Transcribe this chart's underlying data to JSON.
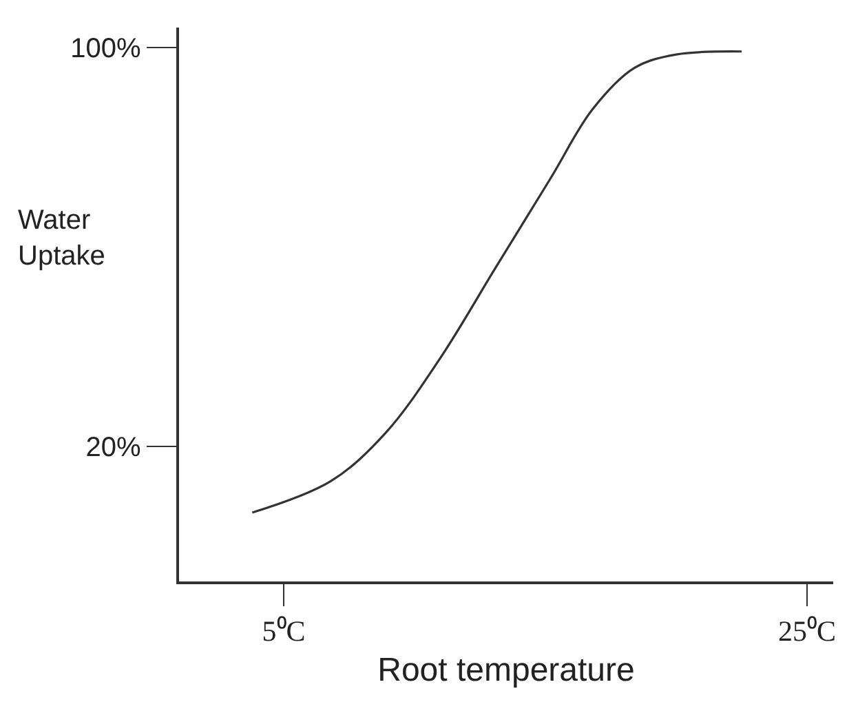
{
  "chart_data": {
    "type": "line",
    "xlabel": "Root temperature",
    "ylabel": "Water\nUptake",
    "x": [
      3.8,
      6.8,
      8.9,
      11.0,
      13.1,
      15.2,
      16.8,
      18.4,
      20.0,
      22.5
    ],
    "series": [
      {
        "color": "#333333",
        "values": [
          6.8,
          13.1,
          22.8,
          37.9,
          55.9,
          73.8,
          87.6,
          95.9,
          98.6,
          99.2
        ]
      }
    ],
    "xlim": [
      1,
      26
    ],
    "ylim": [
      -7,
      104
    ],
    "xticks": [
      {
        "value": 5,
        "label": "5⁰C"
      },
      {
        "value": 25,
        "label": "25⁰C"
      }
    ],
    "yticks": [
      {
        "value": 20,
        "label": "20%"
      },
      {
        "value": 100,
        "label": "100%"
      }
    ],
    "line_style": "solid"
  }
}
